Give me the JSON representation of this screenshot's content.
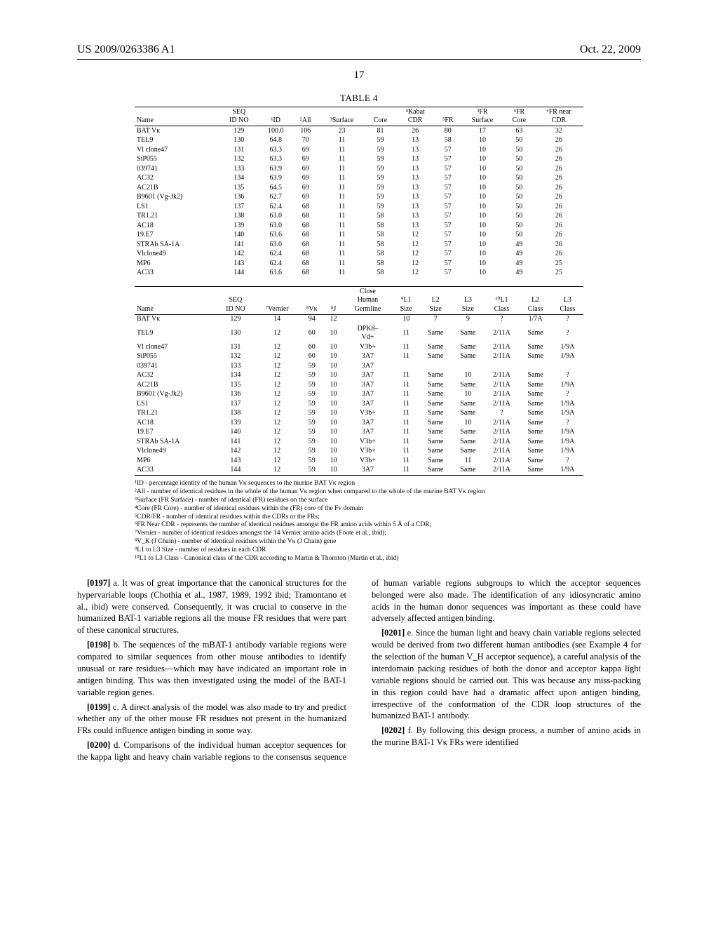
{
  "header": {
    "pubno": "US 2009/0263386 A1",
    "date": "Oct. 22, 2009"
  },
  "page_number": "17",
  "table4": {
    "caption": "TABLE 4",
    "part1": {
      "headers": [
        "Name",
        "SEQ\nID NO",
        "¹ID",
        "²All",
        "³Surface",
        "Core",
        "⁴Kabat\nCDR",
        "⁵FR",
        "³FR\nSurface",
        "⁴FR\nCore",
        "⁶FR near\nCDR"
      ],
      "rows": [
        [
          "BAT Vκ",
          "129",
          "100.0",
          "106",
          "23",
          "81",
          "26",
          "80",
          "17",
          "63",
          "32"
        ],
        [
          "TEL9",
          "130",
          "64.8",
          "70",
          "11",
          "59",
          "13",
          "58",
          "10",
          "50",
          "26"
        ],
        [
          "Vl clone47",
          "131",
          "63.3",
          "69",
          "11",
          "59",
          "13",
          "57",
          "10",
          "50",
          "26"
        ],
        [
          "SiP055",
          "132",
          "63.3",
          "69",
          "11",
          "59",
          "13",
          "57",
          "10",
          "50",
          "26"
        ],
        [
          "039741",
          "133",
          "63.9",
          "69",
          "11",
          "59",
          "13",
          "57",
          "10",
          "50",
          "26"
        ],
        [
          "AC32",
          "134",
          "63.9",
          "69",
          "11",
          "59",
          "13",
          "57",
          "10",
          "50",
          "26"
        ],
        [
          "AC21B",
          "135",
          "64.5",
          "69",
          "11",
          "59",
          "13",
          "57",
          "10",
          "50",
          "26"
        ],
        [
          "B9601 (Vg-Jk2)",
          "136",
          "62.7",
          "69",
          "11",
          "59",
          "13",
          "57",
          "10",
          "50",
          "26"
        ],
        [
          "LS1",
          "137",
          "62.4",
          "68",
          "11",
          "59",
          "13",
          "57",
          "10",
          "50",
          "26"
        ],
        [
          "TR1.21",
          "138",
          "63.0",
          "68",
          "11",
          "58",
          "13",
          "57",
          "10",
          "50",
          "26"
        ],
        [
          "AC18",
          "139",
          "63.0",
          "68",
          "11",
          "58",
          "13",
          "57",
          "10",
          "50",
          "26"
        ],
        [
          "19.E7",
          "140",
          "63.6",
          "68",
          "11",
          "58",
          "12",
          "57",
          "10",
          "50",
          "26"
        ],
        [
          "STRAb SA-1A",
          "141",
          "63.0",
          "68",
          "11",
          "58",
          "12",
          "57",
          "10",
          "49",
          "26"
        ],
        [
          "Vlclone49",
          "142",
          "62.4",
          "68",
          "11",
          "58",
          "12",
          "57",
          "10",
          "49",
          "26"
        ],
        [
          "MP6",
          "143",
          "62.4",
          "68",
          "11",
          "58",
          "12",
          "57",
          "10",
          "49",
          "25"
        ],
        [
          "AC33",
          "144",
          "63.6",
          "68",
          "11",
          "58",
          "12",
          "57",
          "10",
          "49",
          "25"
        ]
      ]
    },
    "part2": {
      "headers": [
        "Name",
        "SEQ\nID NO",
        "⁷Vernier",
        "⁸Vκ",
        "⁸J",
        "Close\nHuman\nGermline",
        "⁹L1\nSize",
        "L2\nSize",
        "L3\nSize",
        "¹⁰L1\nClass",
        "L2\nClass",
        "L3\nClass"
      ],
      "rows": [
        [
          "BAT Vκ",
          "129",
          "14",
          "94",
          "12",
          "",
          "10",
          "7",
          "9",
          "?",
          "1/7A",
          "?"
        ],
        [
          "TEL9",
          "130",
          "12",
          "60",
          "10",
          "DPK8–\nVd+",
          "11",
          "Same",
          "Same",
          "2/11A",
          "Same",
          "?"
        ],
        [
          "Vl clone47",
          "131",
          "12",
          "60",
          "10",
          "V3b+",
          "11",
          "Same",
          "Same",
          "2/11A",
          "Same",
          "1/9A"
        ],
        [
          "SiP055",
          "132",
          "12",
          "60",
          "10",
          "3A7",
          "11",
          "Same",
          "Same",
          "2/11A",
          "Same",
          "1/9A"
        ],
        [
          "039741",
          "133",
          "12",
          "59",
          "10",
          "3A7",
          "",
          "",
          "",
          "",
          "",
          ""
        ],
        [
          "AC32",
          "134",
          "12",
          "59",
          "10",
          "3A7",
          "11",
          "Same",
          "10",
          "2/11A",
          "Same",
          "?"
        ],
        [
          "AC21B",
          "135",
          "12",
          "59",
          "10",
          "3A7",
          "11",
          "Same",
          "Same",
          "2/11A",
          "Same",
          "1/9A"
        ],
        [
          "B9601 (Vg-Jk2)",
          "136",
          "12",
          "59",
          "10",
          "3A7",
          "11",
          "Same",
          "10",
          "2/11A",
          "Same",
          "?"
        ],
        [
          "LS1",
          "137",
          "12",
          "59",
          "10",
          "3A7",
          "11",
          "Same",
          "Same",
          "2/11A",
          "Same",
          "1/9A"
        ],
        [
          "TR1.21",
          "138",
          "12",
          "59",
          "10",
          "V3b+",
          "11",
          "Same",
          "Same",
          "?",
          "Same",
          "1/9A"
        ],
        [
          "AC18",
          "139",
          "12",
          "59",
          "10",
          "3A7",
          "11",
          "Same",
          "10",
          "2/11A",
          "Same",
          "?"
        ],
        [
          "19.E7",
          "140",
          "12",
          "59",
          "10",
          "3A7",
          "11",
          "Same",
          "Same",
          "2/11A",
          "Same",
          "1/9A"
        ],
        [
          "STRAb SA-1A",
          "141",
          "12",
          "59",
          "10",
          "V3b+",
          "11",
          "Same",
          "Same",
          "2/11A",
          "Same",
          "1/9A"
        ],
        [
          "Vlclone49",
          "142",
          "12",
          "59",
          "10",
          "V3b+",
          "11",
          "Same",
          "Same",
          "2/11A",
          "Same",
          "1/9A"
        ],
        [
          "MP6",
          "143",
          "12",
          "59",
          "10",
          "V3b+",
          "11",
          "Same",
          "11",
          "2/11A",
          "Same",
          "?"
        ],
        [
          "AC33",
          "144",
          "12",
          "59",
          "10",
          "3A7",
          "11",
          "Same",
          "Same",
          "2/11A",
          "Same",
          "1/9A"
        ]
      ]
    }
  },
  "footnotes": [
    "¹ID - percentage identity of the human Vκ sequences to the murine BAT Vκ region",
    "²All - number of identical residues in the whole of the human Vκ region when compared to the whole of the murine BAT Vκ region",
    "³Surface (FR Surface) - number of identical (FR) residues on the surface",
    "⁴Core (FR Core) - number of identical residues within the (FR) core of the Fv domain",
    "⁵CDR/FR - number of identical residues within the CDRs or the FRs;",
    "⁶FR Near CDR - represents the number of identical residues amongst the FR amino acids within 5 Å of a CDR;",
    "⁷Vernier - number of identical residues amongst the 14 Vernier amino acids (Foote et al., ibid);",
    "⁸V_K (J Chain) - number of identical residues within the Vκ (J Chain) gene",
    "⁹L1 to L3 Size - number of residues in each CDR",
    "¹⁰L1 to L3 Class - Canonical class of the CDR according to Martin & Thornton (Martin et al., ibid)"
  ],
  "paragraphs": [
    {
      "n": "[0197]",
      "t": "a. It was of great importance that the canonical structures for the hypervariable loops (Chothia et al., 1987, 1989, 1992 ibid; Tramontano et al., ibid) were conserved. Consequently, it was crucial to conserve in the humanized BAT-1 variable regions all the mouse FR residues that were part of these canonical structures."
    },
    {
      "n": "[0198]",
      "t": "b. The sequences of the mBAT-1 antibody variable regions were compared to similar sequences from other mouse antibodies to identify unusual or rare residues—which may have indicated an important role in antigen binding. This was then investigated using the model of the BAT-1 variable region genes."
    },
    {
      "n": "[0199]",
      "t": "c. A direct analysis of the model was also made to try and predict whether any of the other mouse FR residues not present in the humanized FRs could influence antigen binding in some way."
    },
    {
      "n": "[0200]",
      "t": "d. Comparisons of the individual human acceptor sequences for the kappa light and heavy chain variable regions to the consensus sequence of human variable regions subgroups to which the acceptor sequences belonged were also made. The identification of any idiosyncratic amino acids in the human donor sequences was important as these could have adversely affected antigen binding."
    },
    {
      "n": "[0201]",
      "t": "e. Since the human light and heavy chain variable regions selected would be derived from two different human antibodies (see Example 4 for the selection of the human V_H acceptor sequence), a careful analysis of the interdomain packing residues of both the donor and acceptor kappa light variable regions should be carried out. This was because any miss-packing in this region could have had a dramatic affect upon antigen binding, irrespective of the conformation of the CDR loop structures of the humanized BAT-1 antibody."
    },
    {
      "n": "[0202]",
      "t": "f. By following this design process, a number of amino acids in the murine BAT-1 Vκ FRs were identified"
    }
  ]
}
